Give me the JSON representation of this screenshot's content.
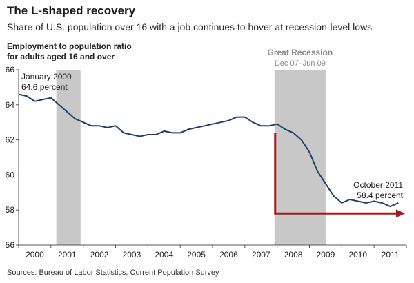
{
  "header": {
    "title": "The L-shaped recovery",
    "subtitle": "Share of U.S. population over 16 with a job continues to hover at recession-level lows",
    "ylabel_line1": "Employment to population ratio",
    "ylabel_line2": "for adults aged 16 and over"
  },
  "source": "Sources: Bureau of Labor Statistics, Current Population Survey",
  "colors": {
    "line": "#1f3d6b",
    "arrow": "#a31a1a",
    "recession": "#c8c8c8",
    "recession_label": "#8c8c8c"
  },
  "chart_data": {
    "type": "line",
    "title": "The L-shaped recovery",
    "subtitle": "Share of U.S. population over 16 with a job continues to hover at recession-level lows",
    "ylabel": "Employment to population ratio for adults aged 16 and over",
    "xlabel": "",
    "xlim": [
      "2000-01",
      "2011-12"
    ],
    "ylim": [
      56,
      66
    ],
    "y_ticks": [
      56,
      58,
      60,
      62,
      64,
      66
    ],
    "x_ticks": [
      "2000",
      "2001",
      "2002",
      "2003",
      "2004",
      "2005",
      "2006",
      "2007",
      "2008",
      "2009",
      "2010",
      "2011"
    ],
    "grid": false,
    "recessions": [
      {
        "start": "2001-03",
        "end": "2001-11",
        "label": ""
      },
      {
        "start": "2007-12",
        "end": "2009-06",
        "label": "Great Recession",
        "sublabel": "Dec 07–Jun 09"
      }
    ],
    "annotations": [
      {
        "x": "2000-01",
        "y": 64.6,
        "line1": "January 2000",
        "line2": "64.6 percent"
      },
      {
        "x": "2011-10",
        "y": 58.4,
        "line1": "October 2011",
        "line2": "58.4 percent"
      }
    ],
    "series": [
      {
        "name": "",
        "x": [
          "2000-01",
          "2000-04",
          "2000-07",
          "2000-10",
          "2001-01",
          "2001-04",
          "2001-07",
          "2001-10",
          "2002-01",
          "2002-04",
          "2002-07",
          "2002-10",
          "2003-01",
          "2003-04",
          "2003-07",
          "2003-10",
          "2004-01",
          "2004-04",
          "2004-07",
          "2004-10",
          "2005-01",
          "2005-04",
          "2005-07",
          "2005-10",
          "2006-01",
          "2006-04",
          "2006-07",
          "2006-10",
          "2007-01",
          "2007-04",
          "2007-07",
          "2007-10",
          "2008-01",
          "2008-04",
          "2008-07",
          "2008-10",
          "2009-01",
          "2009-04",
          "2009-07",
          "2009-10",
          "2010-01",
          "2010-04",
          "2010-07",
          "2010-10",
          "2011-01",
          "2011-04",
          "2011-07",
          "2011-10"
        ],
        "values": [
          64.6,
          64.5,
          64.2,
          64.3,
          64.4,
          64.0,
          63.6,
          63.2,
          63.0,
          62.8,
          62.8,
          62.7,
          62.8,
          62.4,
          62.3,
          62.2,
          62.3,
          62.3,
          62.5,
          62.4,
          62.4,
          62.6,
          62.7,
          62.8,
          62.9,
          63.0,
          63.1,
          63.3,
          63.3,
          63.0,
          62.8,
          62.8,
          62.9,
          62.6,
          62.4,
          62.0,
          61.3,
          60.2,
          59.5,
          58.8,
          58.4,
          58.6,
          58.5,
          58.4,
          58.5,
          58.4,
          58.2,
          58.4
        ]
      }
    ]
  }
}
